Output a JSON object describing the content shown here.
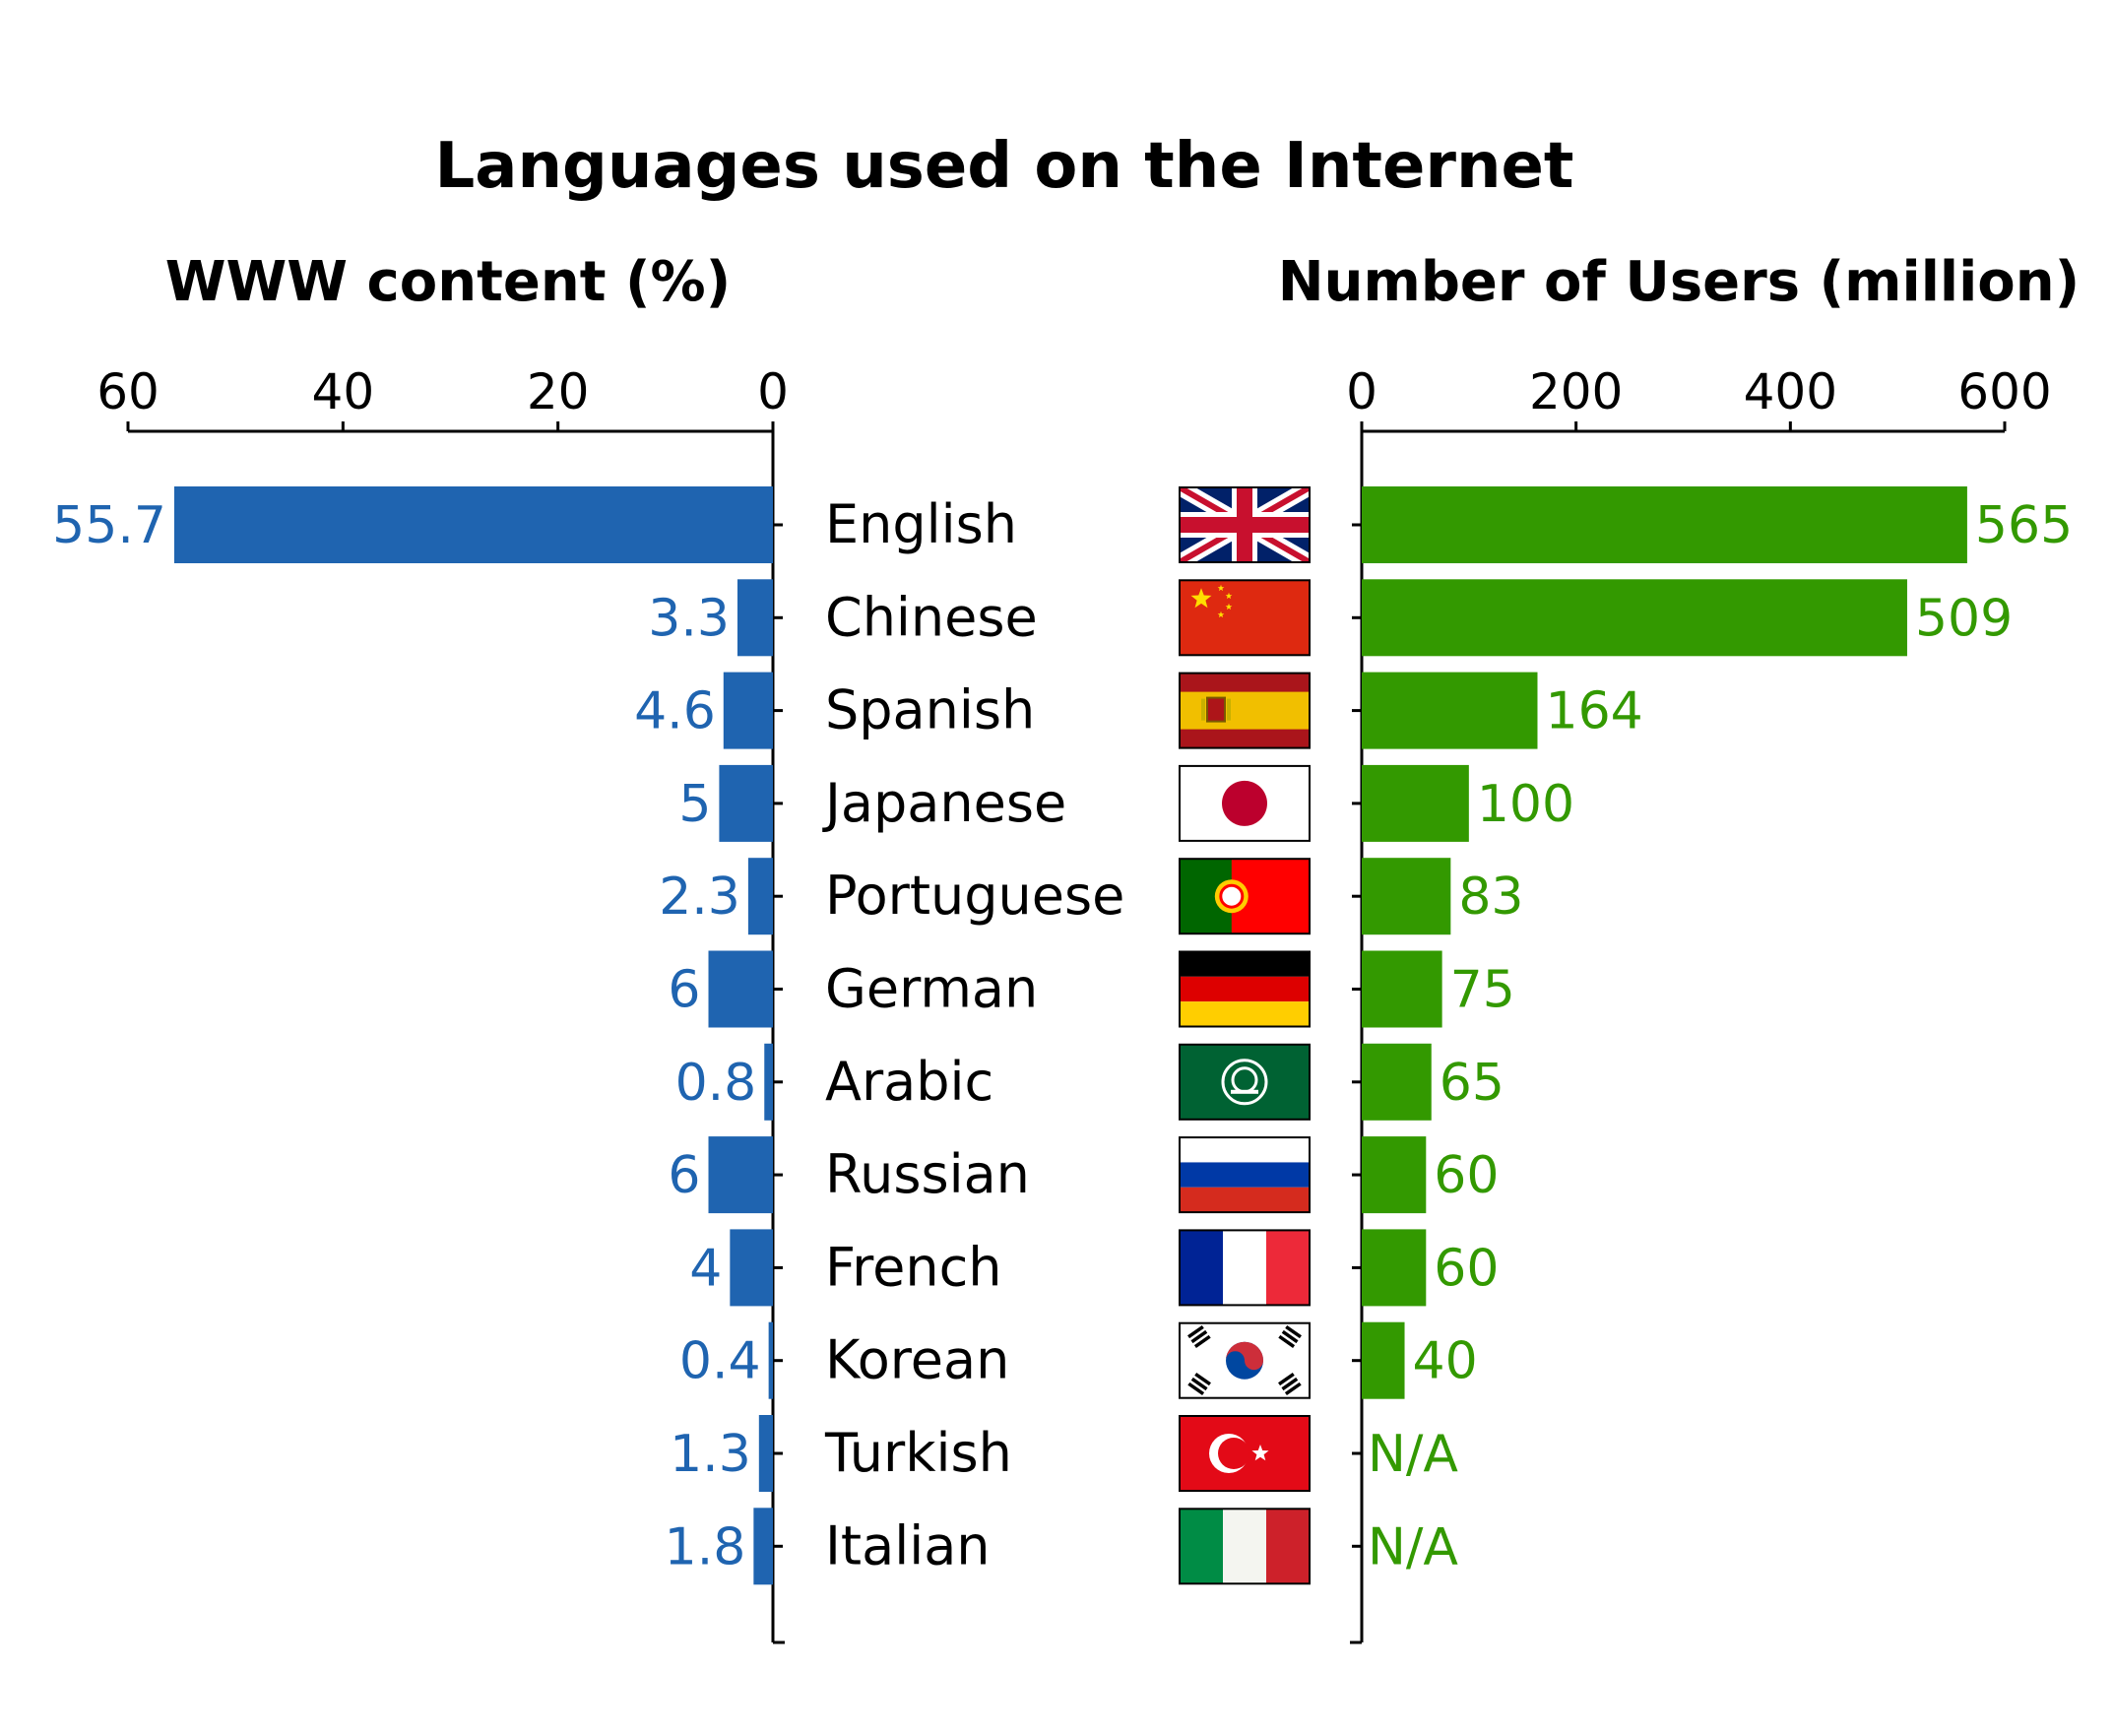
{
  "chart_data": {
    "type": "bar",
    "title": "Languages used on the Internet",
    "categories": [
      "English",
      "Chinese",
      "Spanish",
      "Japanese",
      "Portuguese",
      "German",
      "Arabic",
      "Russian",
      "French",
      "Korean",
      "Turkish",
      "Italian"
    ],
    "flags": [
      "uk-flag-icon",
      "china-flag-icon",
      "spain-flag-icon",
      "japan-flag-icon",
      "portugal-flag-icon",
      "germany-flag-icon",
      "arab-league-flag-icon",
      "russia-flag-icon",
      "france-flag-icon",
      "south-korea-flag-icon",
      "turkey-flag-icon",
      "italy-flag-icon"
    ],
    "series": [
      {
        "title": "WWW content (%)",
        "values": [
          55.7,
          3.3,
          4.6,
          5,
          2.3,
          6,
          0.8,
          6,
          4,
          0.4,
          1.3,
          1.8
        ],
        "labels": [
          "55.7",
          "3.3",
          "4.6",
          "5",
          "2.3",
          "6",
          "0.8",
          "6",
          "4",
          "0.4",
          "1.3",
          "1.8"
        ],
        "xlim": [
          60,
          0
        ],
        "ticks": [
          60,
          40,
          20,
          0
        ],
        "color": "#1f64b0",
        "direction": "left"
      },
      {
        "title": "Number of Users (million)",
        "values": [
          565,
          509,
          164,
          100,
          83,
          75,
          65,
          60,
          60,
          40,
          null,
          null
        ],
        "labels": [
          "565",
          "509",
          "164",
          "100",
          "83",
          "75",
          "65",
          "60",
          "60",
          "40",
          "N/A",
          "N/A"
        ],
        "xlim": [
          0,
          600
        ],
        "ticks": [
          0,
          200,
          400,
          600
        ],
        "color": "#339900",
        "direction": "right"
      }
    ],
    "grid": false,
    "legend": "none"
  }
}
